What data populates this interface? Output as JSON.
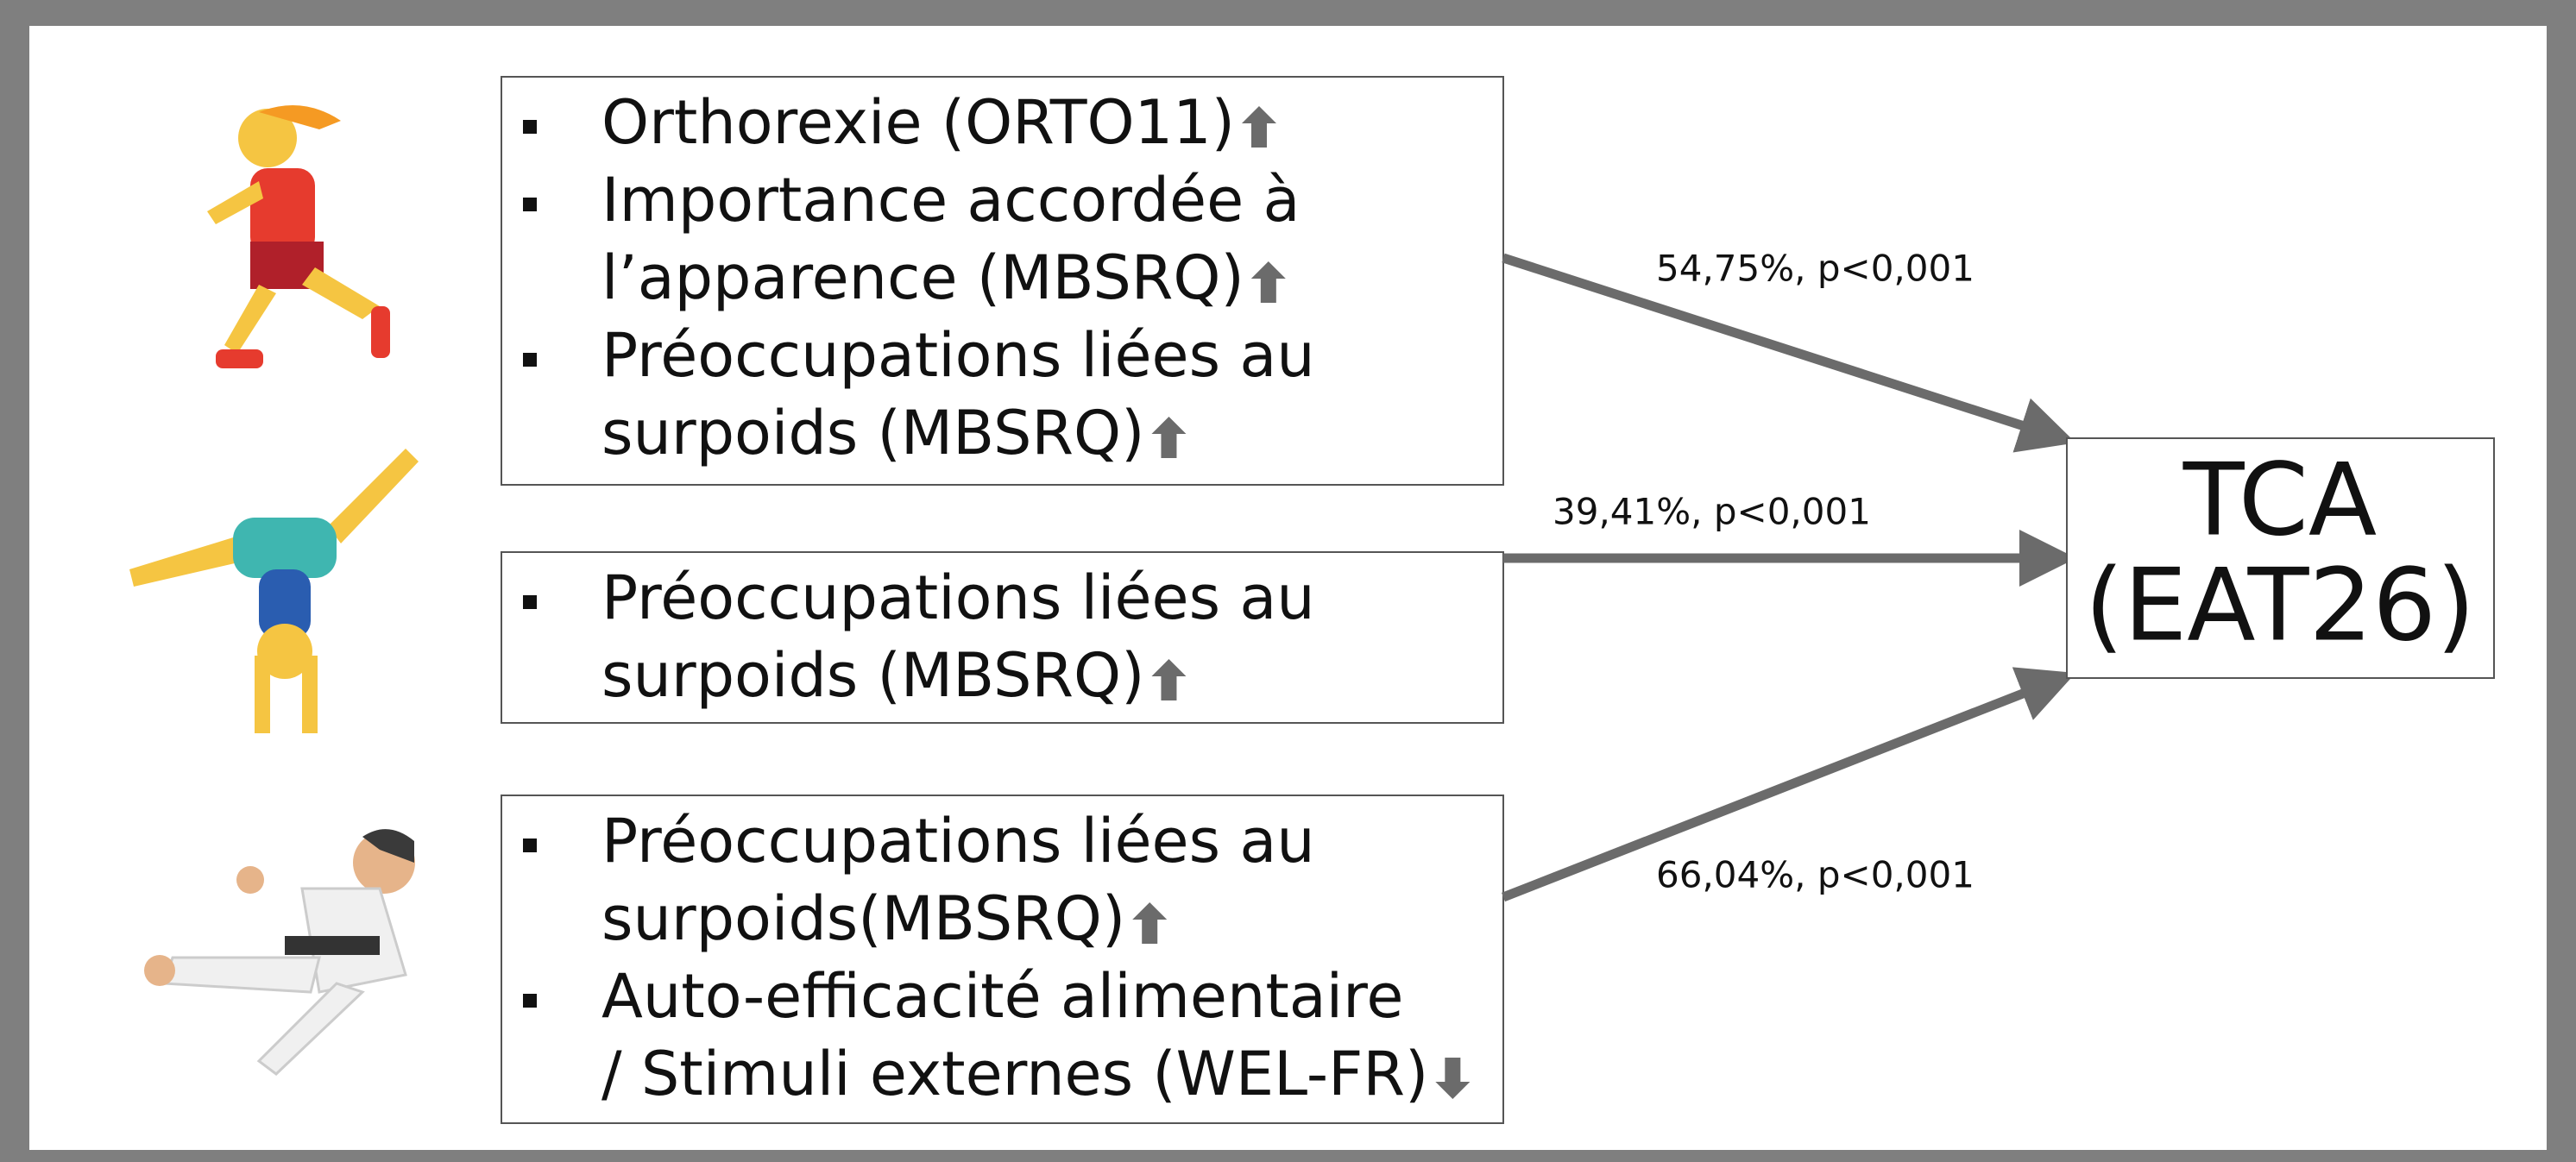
{
  "groups": [
    {
      "items": [
        [
          "Orthorexie (ORTO11)"
        ],
        [
          "Importance accordée à",
          "l’apparence (MBSRQ)"
        ],
        [
          "Préoccupations liées au",
          "surpoids (MBSRQ)"
        ]
      ],
      "link_label": "54,75%, p<0,001"
    },
    {
      "items": [
        [
          "Préoccupations liées au",
          "surpoids (MBSRQ)"
        ]
      ],
      "link_label": "39,41%, p<0,001"
    },
    {
      "items": [
        [
          "Préoccupations liées au",
          "surpoids(MBSRQ)"
        ],
        [
          "Auto-efficacité alimentaire",
          "/ Stimuli externes (WEL-FR)"
        ]
      ],
      "link_label": "66,04%, p<0,001"
    }
  ],
  "target": {
    "lines": [
      "TCA",
      "(EAT26)"
    ]
  }
}
